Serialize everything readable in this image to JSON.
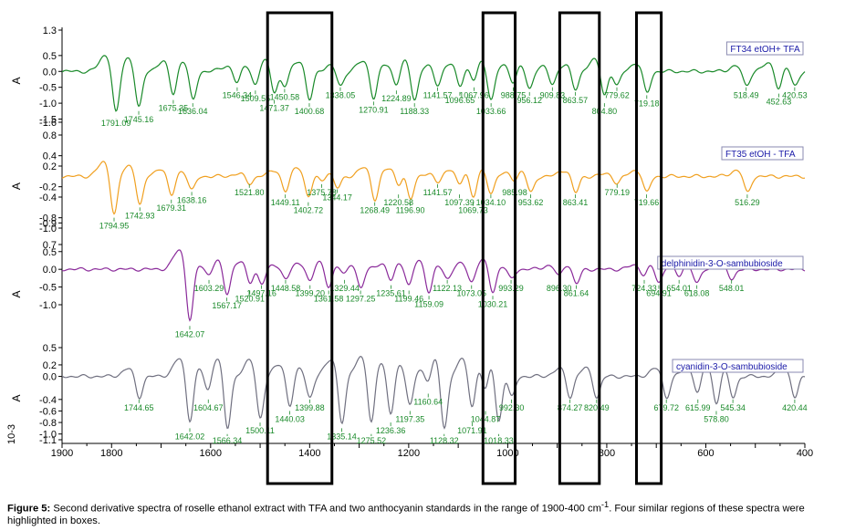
{
  "chart_data": {
    "type": "line",
    "x_axis": {
      "range": [
        1900,
        400
      ],
      "reversed": true,
      "ticks": [
        1900,
        1800,
        1600,
        1400,
        1200,
        1000,
        800,
        600,
        400
      ]
    },
    "y_label": "A",
    "y_exponent": "10-3",
    "boxes": [
      [
        1485,
        1355
      ],
      [
        1050,
        985
      ],
      [
        895,
        815
      ],
      [
        740,
        690
      ]
    ],
    "panels": [
      {
        "name": "FT34 etOH+ TFA",
        "color": "#1a8a2a",
        "yticks": [
          "1.3",
          "0.5",
          "0.0",
          "-0.5",
          "-1.0",
          "-1.5",
          "-1.6"
        ],
        "yvals": [
          1.3,
          0.5,
          0.0,
          -0.5,
          -1.0,
          -1.5,
          -1.6
        ],
        "ylim": [
          -1.6,
          1.3
        ],
        "peaks": [
          {
            "x": 1791.09,
            "y": -1.5,
            "label": "1791.09"
          },
          {
            "x": 1745.16,
            "y": -1.25,
            "label": "1745.16"
          },
          {
            "x": 1675.35,
            "y": -0.9,
            "label": "1675.35"
          },
          {
            "x": 1636.04,
            "y": -1.0,
            "label": "1636.04"
          },
          {
            "x": 1546.34,
            "y": -0.5,
            "label": "1546.34"
          },
          {
            "x": 1509.55,
            "y": -0.6,
            "label": "1509.55"
          },
          {
            "x": 1450.58,
            "y": -0.55,
            "label": "1450.58"
          },
          {
            "x": 1471.37,
            "y": -0.9,
            "label": "1471.37"
          },
          {
            "x": 1400.68,
            "y": -1.0,
            "label": "1400.68"
          },
          {
            "x": 1338.05,
            "y": -0.5,
            "label": "1338.05"
          },
          {
            "x": 1224.89,
            "y": -0.6,
            "label": "1224.89"
          },
          {
            "x": 1270.91,
            "y": -0.95,
            "label": "1270.91"
          },
          {
            "x": 1188.33,
            "y": -1.0,
            "label": "1188.33"
          },
          {
            "x": 1141.57,
            "y": -0.5,
            "label": "1141.57"
          },
          {
            "x": 1067.96,
            "y": -0.5,
            "label": "1067.96"
          },
          {
            "x": 1096.65,
            "y": -0.65,
            "label": "1096.65"
          },
          {
            "x": 1033.66,
            "y": -1.0,
            "label": "1033.66"
          },
          {
            "x": 988.75,
            "y": -0.5,
            "label": "988.75"
          },
          {
            "x": 956.12,
            "y": -0.65,
            "label": "956.12"
          },
          {
            "x": 909.83,
            "y": -0.5,
            "label": "909.83"
          },
          {
            "x": 863.57,
            "y": -0.65,
            "label": "863.57"
          },
          {
            "x": 804.8,
            "y": -1.0,
            "label": "804.80"
          },
          {
            "x": 779.62,
            "y": -0.5,
            "label": "779.62"
          },
          {
            "x": 719.18,
            "y": -0.75,
            "label": "719.18"
          },
          {
            "x": 518.49,
            "y": -0.5,
            "label": "518.49"
          },
          {
            "x": 452.63,
            "y": -0.7,
            "label": "452.63"
          },
          {
            "x": 420.53,
            "y": -0.5,
            "label": "420.53"
          }
        ]
      },
      {
        "name": "FT35 etOH - TFA",
        "color": "#f0a020",
        "yticks": [
          "0.8",
          "0.4",
          "0.2",
          "-0.2",
          "-0.4",
          "-0.8",
          "-0.9",
          "-1.0"
        ],
        "yvals": [
          0.8,
          0.4,
          0.2,
          -0.2,
          -0.4,
          -0.8,
          -0.9,
          -1.0
        ],
        "ylim": [
          -1.0,
          0.8
        ],
        "peaks": [
          {
            "x": 1794.95,
            "y": -0.8,
            "label": "1794.95"
          },
          {
            "x": 1742.93,
            "y": -0.6,
            "label": "1742.93"
          },
          {
            "x": 1679.31,
            "y": -0.45,
            "label": "1679.31"
          },
          {
            "x": 1638.16,
            "y": -0.3,
            "label": "1638.16"
          },
          {
            "x": 1521.8,
            "y": -0.15,
            "label": "1521.80"
          },
          {
            "x": 1449.11,
            "y": -0.35,
            "label": "1449.11"
          },
          {
            "x": 1402.72,
            "y": -0.5,
            "label": "1402.72"
          },
          {
            "x": 1375.78,
            "y": -0.15,
            "label": "1375.78"
          },
          {
            "x": 1344.17,
            "y": -0.25,
            "label": "1344.17"
          },
          {
            "x": 1220.58,
            "y": -0.35,
            "label": "1220.58"
          },
          {
            "x": 1268.49,
            "y": -0.5,
            "label": "1268.49"
          },
          {
            "x": 1196.9,
            "y": -0.5,
            "label": "1196.90"
          },
          {
            "x": 1141.57,
            "y": -0.15,
            "label": "1141.57"
          },
          {
            "x": 1097.39,
            "y": -0.35,
            "label": "1097.39"
          },
          {
            "x": 1069.73,
            "y": -0.5,
            "label": "1069.73"
          },
          {
            "x": 1034.1,
            "y": -0.35,
            "label": "1034.10"
          },
          {
            "x": 985.98,
            "y": -0.15,
            "label": "985.98"
          },
          {
            "x": 953.62,
            "y": -0.35,
            "label": "953.62"
          },
          {
            "x": 863.41,
            "y": -0.35,
            "label": "863.41"
          },
          {
            "x": 779.19,
            "y": -0.15,
            "label": "779.19"
          },
          {
            "x": 719.66,
            "y": -0.35,
            "label": "719.66"
          },
          {
            "x": 516.29,
            "y": -0.35,
            "label": "516.29"
          }
        ]
      },
      {
        "name": "delphinidin-3-O-sambubioside",
        "color": "#8a2a9a",
        "yticks": [
          "0.7",
          "0.5",
          "0.0",
          "-0.5",
          "-1.0"
        ],
        "yvals": [
          0.7,
          0.5,
          0.0,
          -0.5,
          -1.0
        ],
        "ylim": [
          -1.85,
          0.7
        ],
        "peaks": [
          {
            "x": 1642.07,
            "y": -1.6,
            "label": "1642.07"
          },
          {
            "x": 1603.29,
            "y": -0.3,
            "label": "1603.29"
          },
          {
            "x": 1567.17,
            "y": -0.8,
            "label": "1567.17"
          },
          {
            "x": 1520.91,
            "y": -0.6,
            "label": "1520.91"
          },
          {
            "x": 1497.16,
            "y": -0.45,
            "label": "1497.16"
          },
          {
            "x": 1448.58,
            "y": -0.3,
            "label": "1448.58"
          },
          {
            "x": 1399.2,
            "y": -0.45,
            "label": "1399.20"
          },
          {
            "x": 1361.58,
            "y": -0.6,
            "label": "1361.58"
          },
          {
            "x": 1329.44,
            "y": -0.3,
            "label": "1329.44"
          },
          {
            "x": 1297.25,
            "y": -0.6,
            "label": "1297.25"
          },
          {
            "x": 1235.61,
            "y": -0.45,
            "label": "1235.61"
          },
          {
            "x": 1199.46,
            "y": -0.6,
            "label": "1199.46"
          },
          {
            "x": 1159.09,
            "y": -0.75,
            "label": "1159.09"
          },
          {
            "x": 1122.13,
            "y": -0.3,
            "label": "1122.13"
          },
          {
            "x": 1073.05,
            "y": -0.45,
            "label": "1073.05"
          },
          {
            "x": 1030.21,
            "y": -0.75,
            "label": "1030.21"
          },
          {
            "x": 993.29,
            "y": -0.3,
            "label": "993.29"
          },
          {
            "x": 896.3,
            "y": -0.3,
            "label": "896.30"
          },
          {
            "x": 861.64,
            "y": -0.45,
            "label": "861.64"
          },
          {
            "x": 724.33,
            "y": -0.3,
            "label": "724.33"
          },
          {
            "x": 694.91,
            "y": -0.45,
            "label": "694.91"
          },
          {
            "x": 654.01,
            "y": -0.3,
            "label": "654.01"
          },
          {
            "x": 618.08,
            "y": -0.45,
            "label": "618.08"
          },
          {
            "x": 548.01,
            "y": -0.3,
            "label": "548.01"
          }
        ]
      },
      {
        "name": "cyanidin-3-O-sambubioside",
        "color": "#707080",
        "yticks": [
          "0.5",
          "0.2",
          "0.0",
          "-0.4",
          "-0.6",
          "-0.8",
          "-1.0",
          "-1.1"
        ],
        "yvals": [
          0.5,
          0.2,
          0.0,
          -0.4,
          -0.6,
          -0.8,
          -1.0,
          -1.1
        ],
        "ylim": [
          -1.1,
          0.5
        ],
        "peaks": [
          {
            "x": 1744.65,
            "y": -0.4,
            "label": "1744.65"
          },
          {
            "x": 1642.02,
            "y": -0.9,
            "label": "1642.02"
          },
          {
            "x": 1604.67,
            "y": -0.4,
            "label": "1604.67"
          },
          {
            "x": 1566.34,
            "y": -1.0,
            "label": "1566.34"
          },
          {
            "x": 1500.11,
            "y": -0.8,
            "label": "1500.11"
          },
          {
            "x": 1440.03,
            "y": -0.6,
            "label": "1440.03"
          },
          {
            "x": 1399.88,
            "y": -0.4,
            "label": "1399.88"
          },
          {
            "x": 1335.14,
            "y": -0.9,
            "label": "1335.14"
          },
          {
            "x": 1275.52,
            "y": -1.0,
            "label": "1275.52"
          },
          {
            "x": 1236.36,
            "y": -0.8,
            "label": "1236.36"
          },
          {
            "x": 1197.35,
            "y": -0.6,
            "label": "1197.35"
          },
          {
            "x": 1160.64,
            "y": -0.3,
            "label": "1160.64"
          },
          {
            "x": 1128.32,
            "y": -1.0,
            "label": "1128.32"
          },
          {
            "x": 1071.91,
            "y": -0.8,
            "label": "1071.91"
          },
          {
            "x": 1044.87,
            "y": -0.6,
            "label": "1044.87"
          },
          {
            "x": 1018.33,
            "y": -1.0,
            "label": "1018.33"
          },
          {
            "x": 992.3,
            "y": -0.4,
            "label": "992.30"
          },
          {
            "x": 874.27,
            "y": -0.4,
            "label": "874.27"
          },
          {
            "x": 820.49,
            "y": -0.4,
            "label": "820.49"
          },
          {
            "x": 679.72,
            "y": -0.4,
            "label": "679.72"
          },
          {
            "x": 615.99,
            "y": -0.4,
            "label": "615.99"
          },
          {
            "x": 578.8,
            "y": -0.6,
            "label": "578.80"
          },
          {
            "x": 545.34,
            "y": -0.4,
            "label": "545.34"
          },
          {
            "x": 420.44,
            "y": -0.4,
            "label": "420.44"
          }
        ]
      }
    ]
  },
  "caption": {
    "label": "Figure 5:",
    "text_before_sup": " Second derivative spectra of roselle ethanol extract with TFA and two anthocyanin standards in the range of 1900-400 cm",
    "sup": "-1",
    "text_after_sup": ". Four similar regions of these spectra were highlighted in boxes."
  }
}
